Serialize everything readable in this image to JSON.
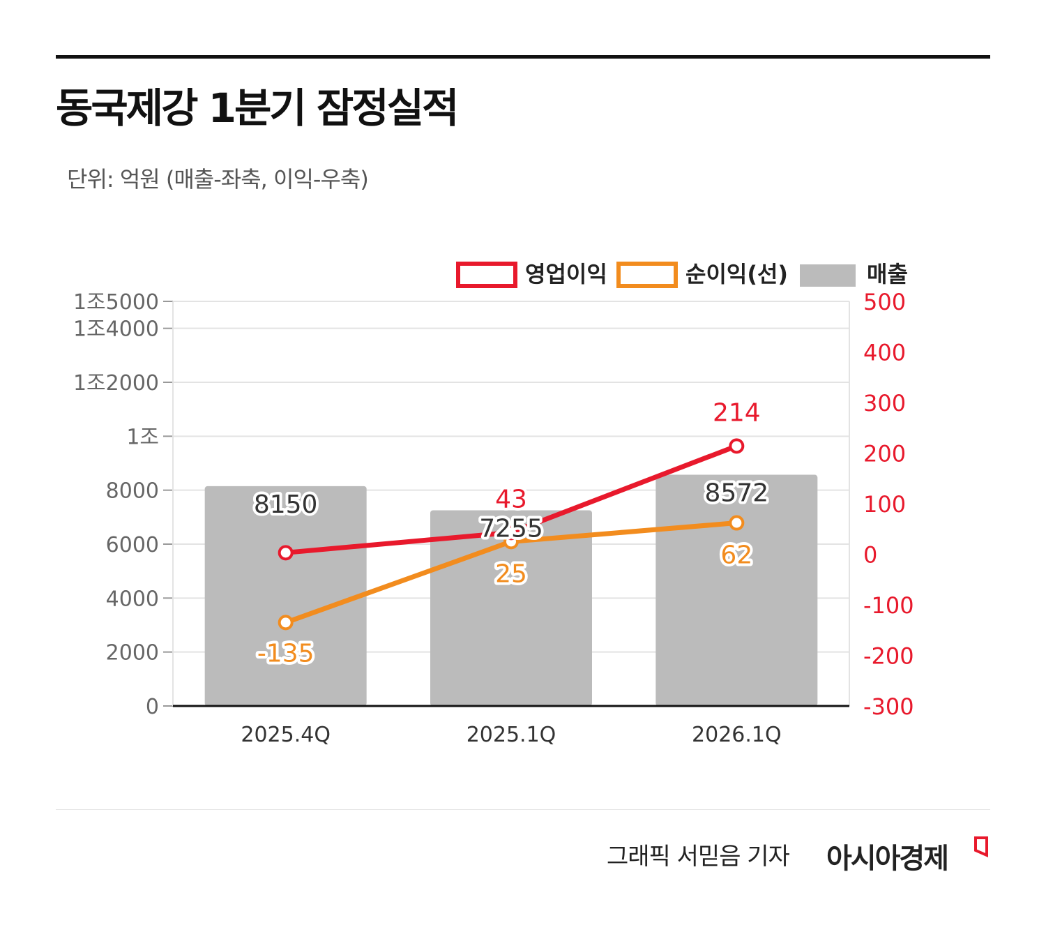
{
  "title": "동국제강 1분기 잠정실적",
  "unit_note": "단위: 억원 (매출-좌축, 이익-우축)",
  "credit": "그래픽  서믿음 기자",
  "brand": "아시아경제",
  "colors": {
    "operating_profit": "#e8192c",
    "net_profit": "#f28c1e",
    "revenue": "#bbbbbb"
  },
  "chart_data": {
    "type": "bar+line",
    "categories": [
      "2025.4Q",
      "2025.1Q",
      "2026.1Q"
    ],
    "legend": [
      "영업이익",
      "순이익(선)",
      "매출"
    ],
    "legend_position": "top-right",
    "left_axis": {
      "ylim": [
        0,
        15000
      ],
      "ticks": [
        0,
        2000,
        4000,
        6000,
        8000,
        10000,
        12000,
        14000,
        15000
      ],
      "tick_labels": [
        "0",
        "2000",
        "4000",
        "6000",
        "8000",
        "1조",
        "1조2000",
        "1조4000",
        "1조5000"
      ]
    },
    "right_axis": {
      "ylim": [
        -300,
        500
      ],
      "tick_labels": [
        "-300",
        "-200",
        "-100",
        "0",
        "100",
        "200",
        "300",
        "400",
        "500"
      ]
    },
    "grid": true,
    "series": [
      {
        "name": "매출",
        "type": "bar",
        "axis": "left",
        "values": [
          8150,
          7255,
          8572
        ],
        "labels": [
          "8150",
          "7255",
          "8572"
        ]
      },
      {
        "name": "영업이익",
        "type": "line",
        "axis": "right",
        "values": [
          3,
          43,
          214
        ],
        "labels": [
          "",
          "43",
          "214"
        ]
      },
      {
        "name": "순이익(선)",
        "type": "line",
        "axis": "right",
        "values": [
          -135,
          25,
          62
        ],
        "labels": [
          "-135",
          "25",
          "62"
        ]
      }
    ]
  }
}
